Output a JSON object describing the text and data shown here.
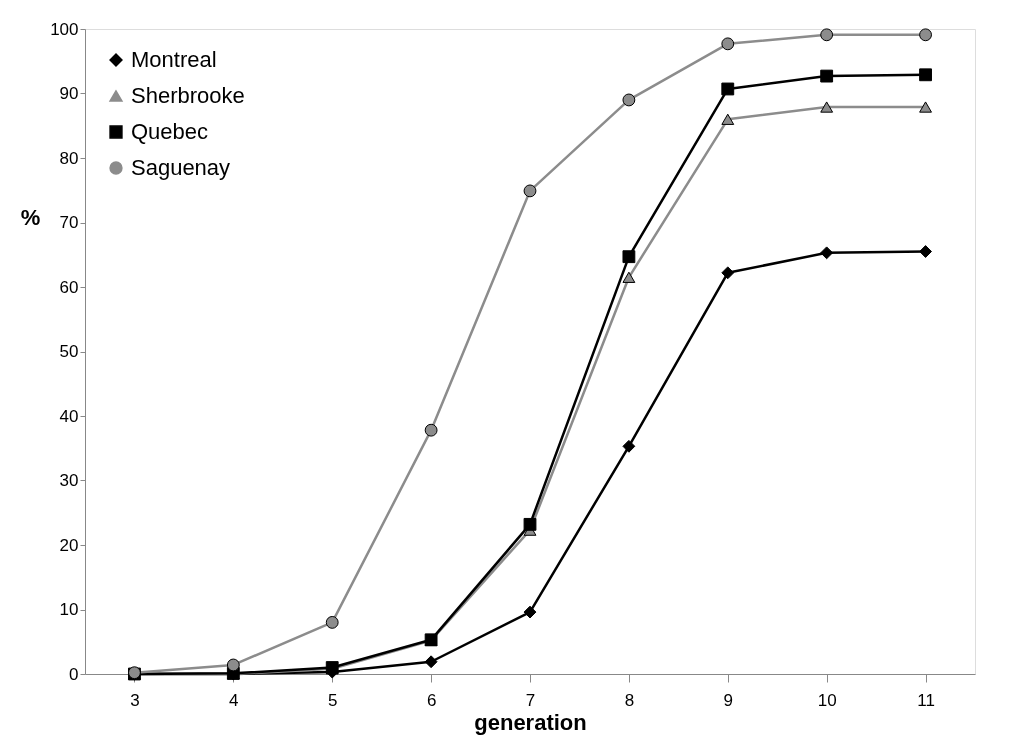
{
  "chart_data": {
    "type": "line",
    "xlabel": "generation",
    "ylabel": "%",
    "categories": [
      "3",
      "4",
      "5",
      "6",
      "7",
      "8",
      "9",
      "10",
      "11"
    ],
    "series": [
      {
        "name": "Montreal",
        "color": "#000000",
        "marker": "diamond",
        "values": [
          0,
          0,
          0.3,
          1.9,
          9.6,
          35.3,
          62.2,
          65.3,
          65.5
        ]
      },
      {
        "name": "Sherbrooke",
        "color": "#8c8c8c",
        "marker": "triangle",
        "values": [
          0,
          0,
          0.8,
          5.2,
          22.3,
          61.5,
          86.0,
          87.9,
          87.9
        ]
      },
      {
        "name": "Quebec",
        "color": "#000000",
        "marker": "square",
        "values": [
          0,
          0.1,
          1.0,
          5.3,
          23.2,
          64.7,
          90.7,
          92.7,
          92.9
        ]
      },
      {
        "name": "Saguenay",
        "color": "#8c8c8c",
        "marker": "circle",
        "values": [
          0.2,
          1.4,
          8.0,
          37.8,
          74.9,
          89.0,
          97.7,
          99.1,
          99.1
        ]
      }
    ],
    "ylim": [
      0,
      100
    ],
    "yticks": [
      0,
      10,
      20,
      30,
      40,
      50,
      60,
      70,
      80,
      90,
      100
    ],
    "grid": false,
    "legend": "top left",
    "line_style": "solid"
  }
}
